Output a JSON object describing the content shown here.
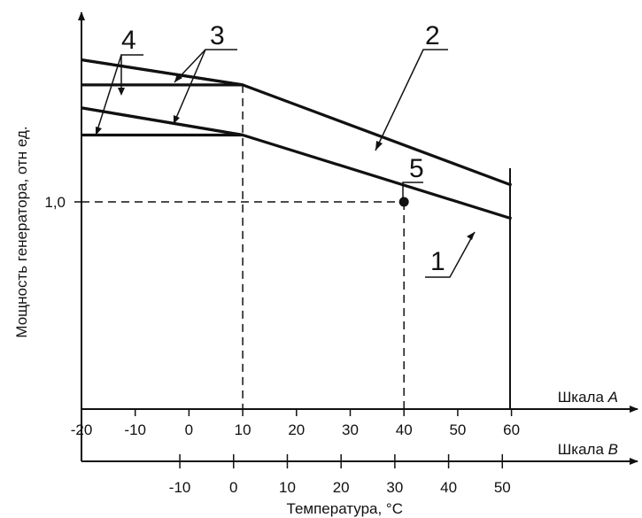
{
  "chart_data": {
    "type": "line",
    "xlabel": "Температура, °C",
    "ylabel": "Мощность генератора, отн ед.",
    "y_ticks": [
      {
        "value": 1.0,
        "label": "1,0"
      }
    ],
    "scale_a": {
      "name_prefix": "Шкала ",
      "name_letter": "A",
      "range": [
        -20,
        60
      ],
      "ticks": [
        "-20",
        "-10",
        "0",
        "10",
        "20",
        "30",
        "40",
        "50",
        "60"
      ],
      "tick_values": [
        -20,
        -10,
        0,
        10,
        20,
        30,
        40,
        50,
        60
      ]
    },
    "scale_b": {
      "name_prefix": "Шкала ",
      "name_letter": "B",
      "ticks": [
        "-10",
        "0",
        "10",
        "20",
        "30",
        "40",
        "50"
      ],
      "tick_values": [
        -10,
        0,
        10,
        20,
        30,
        40,
        50
      ]
    },
    "series": [
      {
        "label": "1",
        "x": [
          -20,
          10,
          60
        ],
        "y": [
          1.45,
          1.32,
          0.92
        ]
      },
      {
        "label": "2",
        "x": [
          -20,
          10,
          60
        ],
        "y": [
          1.68,
          1.56,
          1.08
        ]
      },
      {
        "label": "3",
        "x": [
          -20,
          10
        ],
        "y": [
          1.68,
          1.56
        ]
      },
      {
        "label": "3",
        "x": [
          -20,
          10
        ],
        "y": [
          1.45,
          1.32
        ]
      },
      {
        "label": "4",
        "x": [
          -20,
          10
        ],
        "y": [
          1.56,
          1.56
        ]
      },
      {
        "label": "4",
        "x": [
          -20,
          10
        ],
        "y": [
          1.32,
          1.32
        ]
      }
    ],
    "point": {
      "label": "5",
      "x": 40,
      "y": 1.0
    },
    "callout_labels": [
      "1",
      "2",
      "3",
      "4",
      "5"
    ]
  }
}
